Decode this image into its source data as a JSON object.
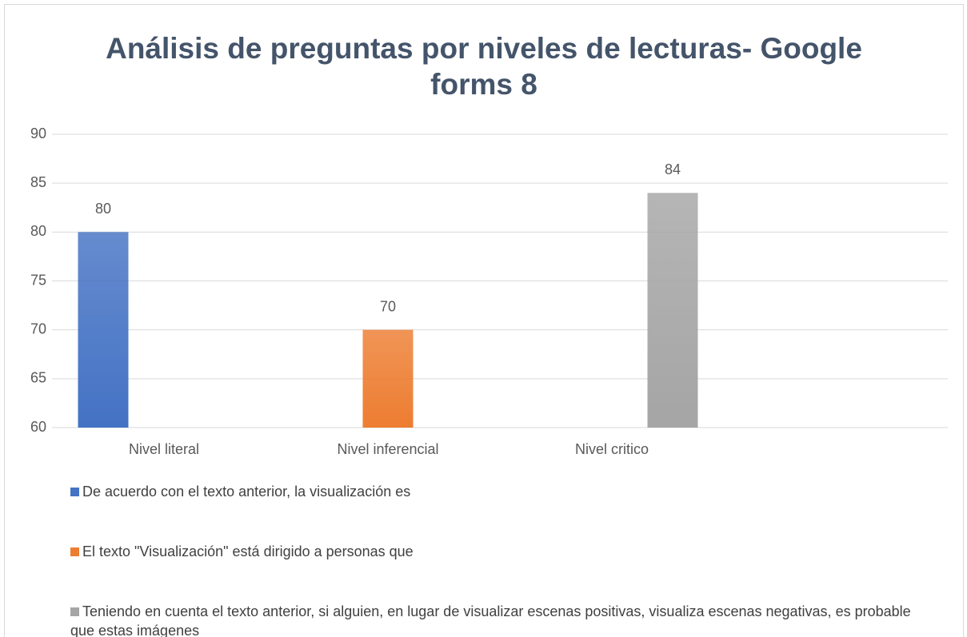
{
  "chart_data": {
    "type": "bar",
    "title": "Análisis de preguntas por niveles de lecturas- Google forms 8",
    "categories": [
      "Nivel literal",
      "Nivel inferencial",
      "Nivel critico",
      null
    ],
    "series": [
      {
        "name": "De acuerdo con el texto anterior, la visualización es",
        "color": "#4472c4",
        "values": [
          80,
          null,
          null,
          null
        ]
      },
      {
        "name": "El texto \"Visualización\" está dirigido a personas que",
        "color": "#ed7d31",
        "values": [
          null,
          70,
          null,
          null
        ]
      },
      {
        "name": "Teniendo en cuenta el texto anterior, si alguien, en lugar de visualizar escenas positivas, visualiza escenas negativas, es probable que estas imágenes",
        "color": "#a5a5a5",
        "values": [
          null,
          null,
          84,
          null
        ]
      }
    ],
    "ylim": [
      60,
      90
    ],
    "yticks": [
      60,
      65,
      70,
      75,
      80,
      85,
      90
    ],
    "grid": true,
    "legend": "bottom"
  }
}
